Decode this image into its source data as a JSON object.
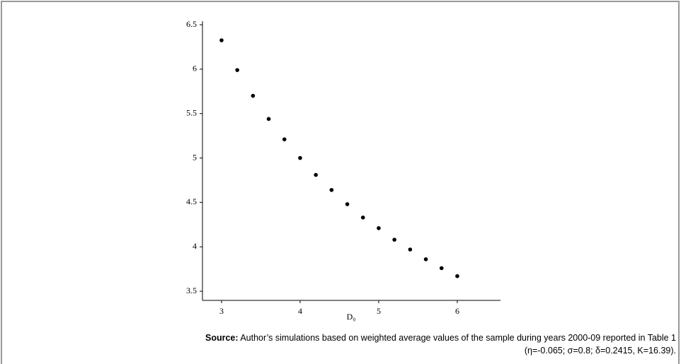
{
  "chart_data": {
    "type": "scatter",
    "x_label": "D₀",
    "x": [
      3,
      3.2,
      3.4,
      3.6,
      3.8,
      4,
      4.2,
      4.4,
      4.6,
      4.8,
      5,
      5.2,
      5.4,
      5.6,
      5.8,
      6
    ],
    "values": [
      6.325,
      5.99,
      5.7,
      5.44,
      5.21,
      5.0,
      4.81,
      4.64,
      4.48,
      4.33,
      4.21,
      4.08,
      3.97,
      3.86,
      3.76,
      3.67
    ],
    "color": "#000000",
    "xlim": [
      2.757,
      6.55
    ],
    "xticks": [
      3,
      4,
      5,
      6
    ],
    "ylim": [
      3.397,
      6.54
    ],
    "yticks": [
      3.5,
      4,
      4.5,
      5,
      5.5,
      6,
      6.5
    ],
    "grid": false,
    "source_label": "Source:",
    "source_lines": [
      "Author’s simulations based on weighted average values of the sample during years 2000-09 reported in Table 1",
      "(η=-0.065; σ=0.8; δ=0.2415, K=16.39)."
    ]
  }
}
